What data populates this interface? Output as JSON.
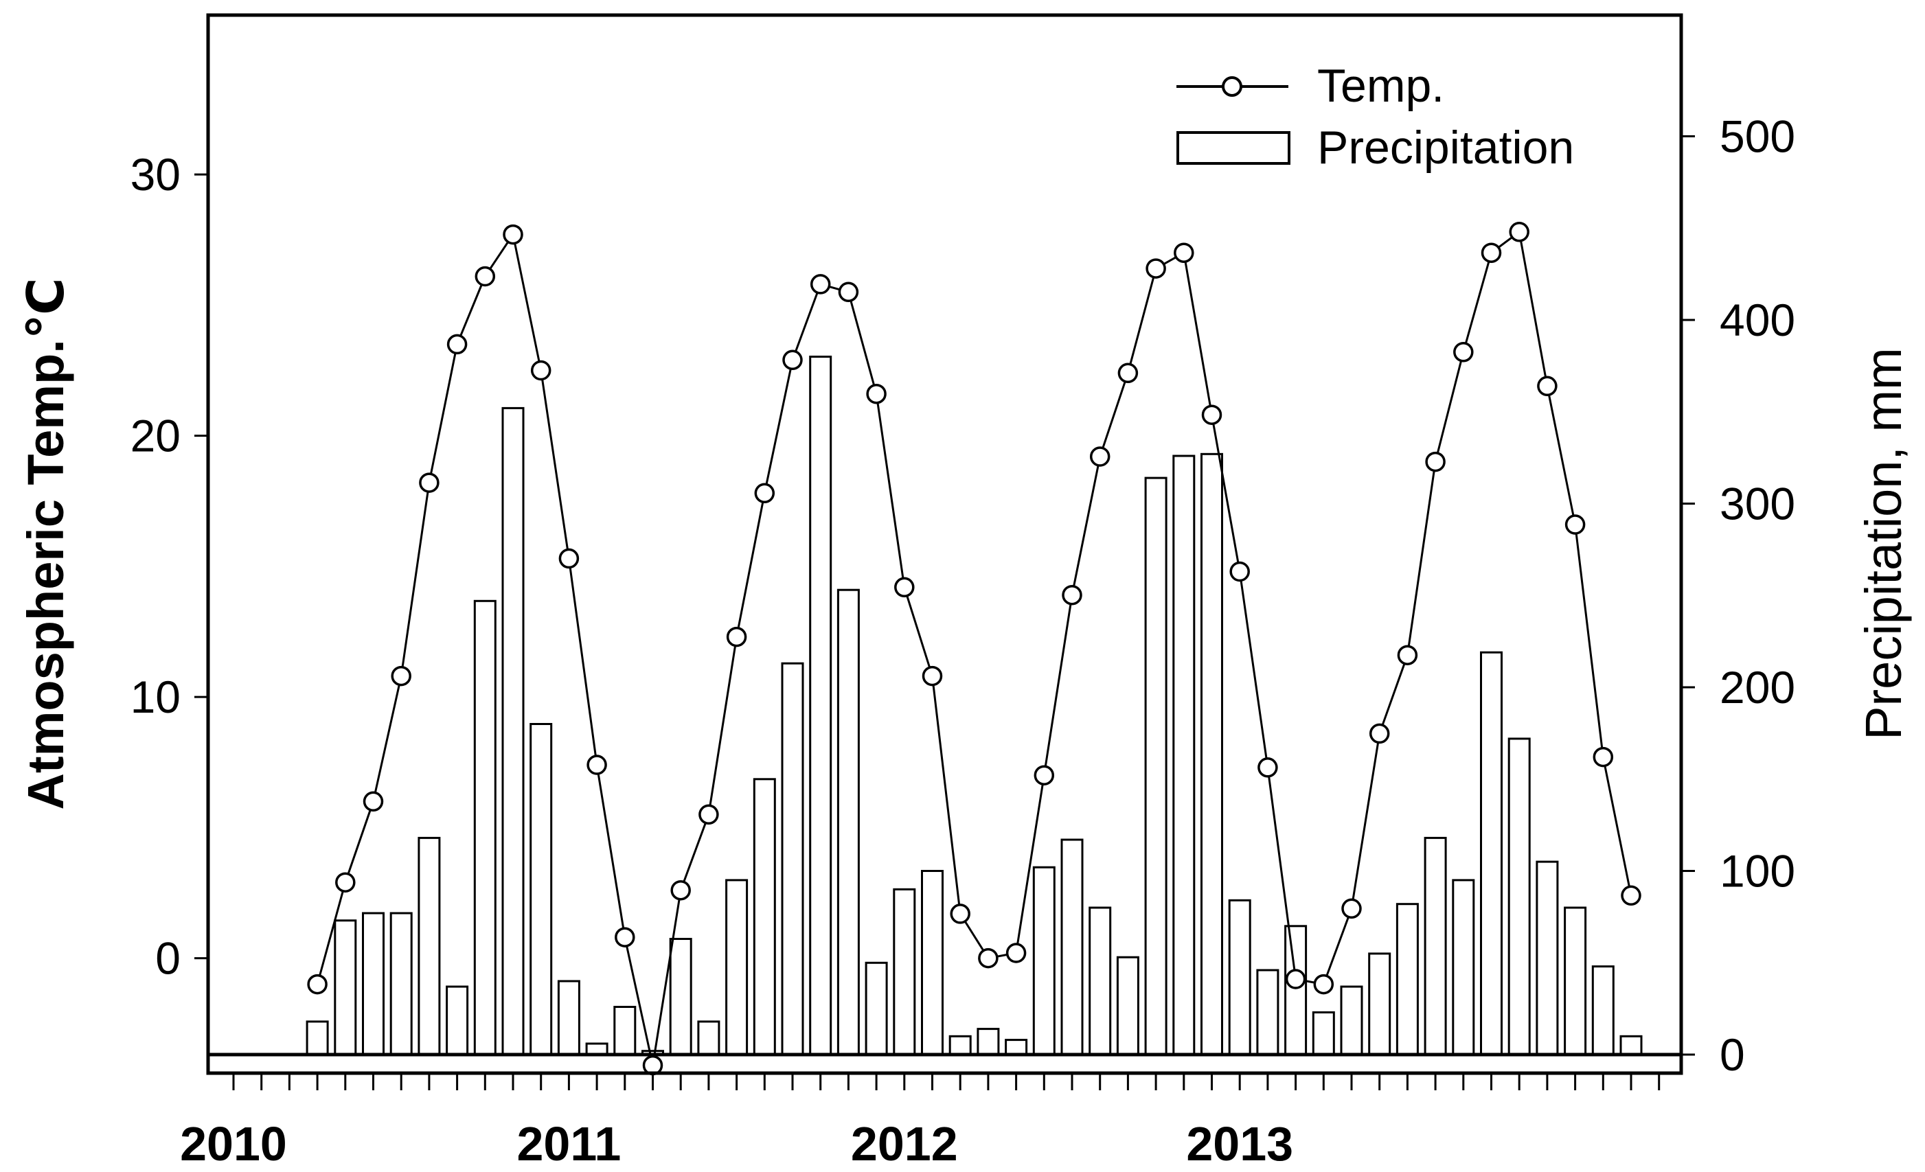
{
  "chart_data": {
    "type": "bar+line",
    "x_year_labels": [
      "2010",
      "2011",
      "2012",
      "2013"
    ],
    "months_per_year": 12,
    "x_start_year": 2010,
    "y_left": {
      "label": "Atmospheric Temp.℃",
      "ticks": [
        0,
        10,
        20,
        30
      ],
      "range": [
        -4.4,
        36.1
      ]
    },
    "y_right": {
      "label": "Precipitation, mm",
      "ticks": [
        0,
        100,
        200,
        300,
        400,
        500
      ],
      "range": [
        0,
        566
      ]
    },
    "legend": {
      "position": "top-right",
      "entries": [
        {
          "name": "Temp.",
          "marker": "line-with-circle"
        },
        {
          "name": "Precipitation",
          "marker": "open-bar"
        }
      ]
    },
    "series": [
      {
        "name": "Temp.",
        "type": "line",
        "axis": "left",
        "start_month": 3,
        "values": [
          -1.0,
          2.9,
          6.0,
          10.8,
          18.2,
          23.5,
          26.1,
          27.7,
          22.5,
          15.3,
          7.4,
          0.8,
          -4.1,
          2.6,
          5.5,
          12.3,
          17.8,
          22.9,
          25.8,
          25.5,
          21.6,
          14.2,
          10.8,
          1.7,
          0.0,
          0.2,
          7.0,
          13.9,
          19.2,
          22.4,
          26.4,
          27.0,
          20.8,
          14.8,
          7.3,
          -0.8,
          -1.0,
          1.9,
          8.6,
          11.6,
          19.0,
          23.2,
          27.0,
          27.8,
          21.9,
          16.6,
          7.7,
          2.4
        ]
      },
      {
        "name": "Precipitation",
        "type": "bar",
        "axis": "right",
        "start_month": 3,
        "values": [
          18,
          73,
          77,
          77,
          118,
          37,
          247,
          352,
          180,
          40,
          6,
          26,
          2,
          63,
          18,
          95,
          150,
          213,
          380,
          253,
          50,
          90,
          100,
          10,
          14,
          8,
          102,
          117,
          80,
          53,
          314,
          326,
          327,
          84,
          46,
          70,
          23,
          37,
          55,
          82,
          118,
          95,
          219,
          172,
          105,
          80,
          48,
          10
        ]
      }
    ],
    "grid": false
  }
}
